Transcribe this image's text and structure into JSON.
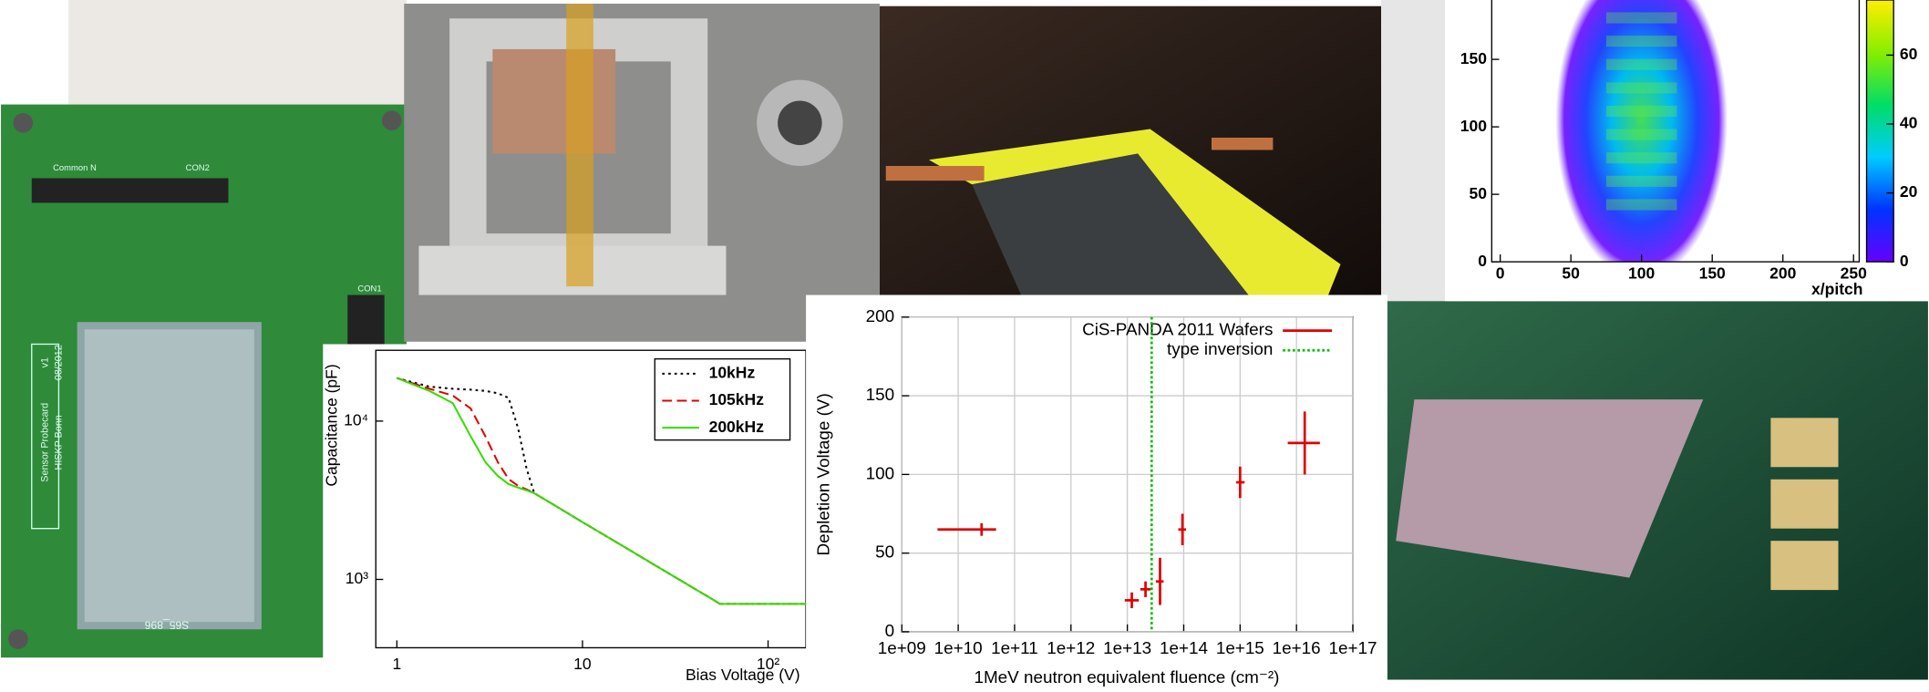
{
  "photos": {
    "pcb": {
      "labels": [
        "Sensor Probecard",
        "v1",
        "HISKP Bonn",
        "08/2012",
        "S65_896",
        "CON2",
        "CON1",
        "Common N"
      ]
    }
  },
  "chart_data": [
    {
      "type": "line",
      "xlabel": "Bias Voltage (V)",
      "ylabel": "Capacitance (pF)",
      "xlog": true,
      "ylog": true,
      "x": [
        1,
        1.5,
        2,
        2.5,
        3,
        3.5,
        4,
        4.5,
        5,
        5.5,
        7,
        10,
        20,
        30,
        50,
        55,
        100,
        160
      ],
      "series": [
        {
          "name": "10kHz",
          "color": "#000000",
          "dash": "dotted",
          "values": [
            18700,
            16500,
            16000,
            15800,
            15500,
            15000,
            14000,
            9000,
            5000,
            3500,
            2960,
            2300,
            1420,
            1070,
            750,
            700,
            700,
            700
          ]
        },
        {
          "name": "105kHz",
          "color": "#e00000",
          "dash": "dashed",
          "values": [
            18700,
            16000,
            14500,
            12000,
            8000,
            5500,
            4300,
            3900,
            3700,
            3500,
            2960,
            2300,
            1420,
            1070,
            750,
            700,
            700,
            700
          ]
        },
        {
          "name": "200kHz",
          "color": "#33dd00",
          "dash": "solid",
          "values": [
            18700,
            15500,
            13000,
            8000,
            5500,
            4500,
            4000,
            3800,
            3650,
            3500,
            2960,
            2300,
            1420,
            1070,
            750,
            700,
            700,
            700
          ]
        }
      ],
      "xlim": [
        0.77,
        160
      ],
      "ylim": [
        370,
        28000
      ],
      "xticks": [
        1,
        10,
        {
          "value": 100,
          "label": "10²"
        }
      ],
      "yticks": [
        {
          "value": 1000,
          "label": "10³"
        },
        {
          "value": 10000,
          "label": "10⁴"
        }
      ],
      "legend": "upper right"
    },
    {
      "type": "errorbar",
      "xlabel": "1MeV neutron equivalent fluence (cm⁻²)",
      "ylabel": "Depletion Voltage (V)",
      "xlog": true,
      "grid": true,
      "series": [
        {
          "name": "CiS-PANDA 2011 Wafers",
          "color": "#e00000",
          "x": [
            26000000000.0,
            12000000000000.0,
            21000000000000.0,
            38000000000000.0,
            95000000000000.0,
            1000000000000000.0,
            1.4e+16
          ],
          "x_low": [
            4300000000.0,
            9000000000000.0,
            17000000000000.0,
            32000000000000.0,
            80000000000000.0,
            850000000000000.0,
            7000000000000000.0
          ],
          "x_high": [
            47000000000.0,
            16000000000000.0,
            26000000000000.0,
            44000000000000.0,
            110000000000000.0,
            1200000000000000.0,
            2.6e+16
          ],
          "values": [
            65,
            20,
            27,
            32,
            65,
            95,
            120
          ],
          "errors": [
            4,
            5,
            5,
            15,
            10,
            10,
            20
          ]
        }
      ],
      "vlines": [
        {
          "name": "type inversion",
          "color": "#00c000",
          "x": 27000000000000.0
        }
      ],
      "xlim": [
        1000000000.0,
        1e+17
      ],
      "ylim": [
        0,
        200
      ],
      "xticks": [
        {
          "value": 1000000000.0,
          "label": "1e+09"
        },
        {
          "value": 10000000000.0,
          "label": "1e+10"
        },
        {
          "value": 100000000000.0,
          "label": "1e+11"
        },
        {
          "value": 1000000000000.0,
          "label": "1e+12"
        },
        {
          "value": 10000000000000.0,
          "label": "1e+13"
        },
        {
          "value": 100000000000000.0,
          "label": "1e+14"
        },
        {
          "value": 1000000000000000.0,
          "label": "1e+15"
        },
        {
          "value": 1e+16,
          "label": "1e+16"
        },
        {
          "value": 1e+17,
          "label": "1e+17"
        }
      ],
      "yticks": [
        0,
        50,
        100,
        150,
        200
      ],
      "legend": "upper right"
    },
    {
      "type": "heatmap",
      "xlabel": "x/pitch",
      "xlim": [
        -6,
        254
      ],
      "ylim": [
        0,
        194
      ],
      "xticks": [
        0,
        50,
        100,
        150,
        200,
        250
      ],
      "yticks": [
        0,
        50,
        100,
        150
      ],
      "clim": [
        0,
        76
      ],
      "cticks": [
        0,
        20,
        40,
        60
      ]
    }
  ]
}
